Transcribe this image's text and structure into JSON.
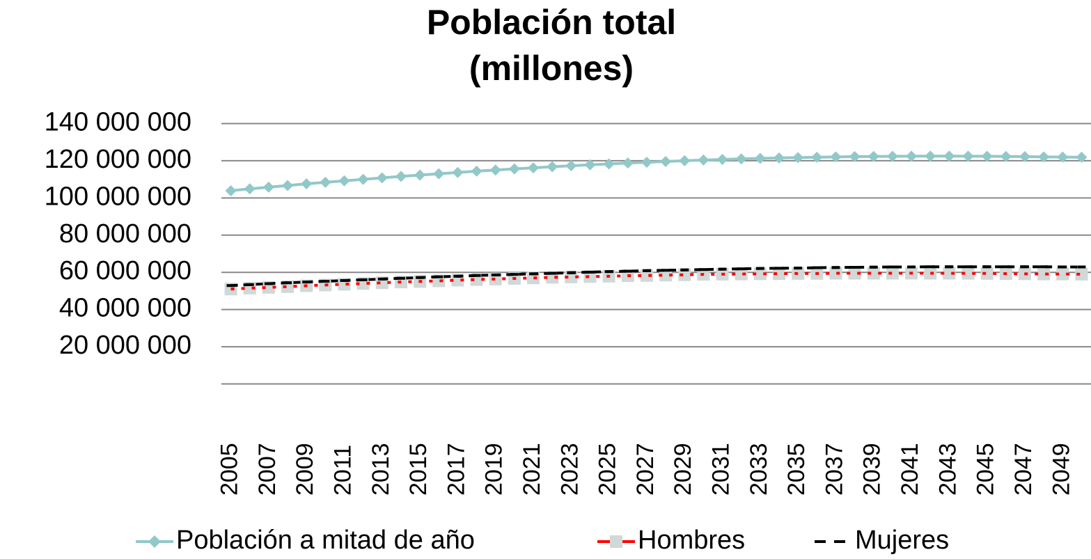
{
  "chart_data": {
    "type": "line",
    "title": [
      "Población total",
      "(millones)"
    ],
    "categories": [
      "2005",
      null,
      "2007",
      null,
      "2009",
      null,
      "2011",
      null,
      "2013",
      null,
      "2015",
      null,
      "2017",
      null,
      "2019",
      null,
      "2021",
      null,
      "2023",
      null,
      "2025",
      null,
      "2027",
      null,
      "2029",
      null,
      "2031",
      null,
      "2033",
      null,
      "2035",
      null,
      "2037",
      null,
      "2039",
      null,
      "2041",
      null,
      "2043",
      null,
      "2045",
      null,
      "2047",
      null,
      "2049",
      null
    ],
    "series": [
      {
        "name": "Población a mitad de año",
        "color": "#92c8c8",
        "marker": "diamond",
        "values": [
          103900000,
          104900000,
          105800000,
          106700000,
          107600000,
          108400000,
          109200000,
          110000000,
          110800000,
          111600000,
          112300000,
          113000000,
          113700000,
          114400000,
          115000000,
          115600000,
          116200000,
          116800000,
          117300000,
          117800000,
          118300000,
          118800000,
          119200000,
          119600000,
          120000000,
          120400000,
          120700000,
          121000000,
          121300000,
          121500000,
          121700000,
          121900000,
          122100000,
          122200000,
          122300000,
          122400000,
          122450000,
          122500000,
          122500000,
          122450000,
          122400000,
          122300000,
          122200000,
          122100000,
          122000000,
          121900000
        ]
      },
      {
        "name": "Hombres",
        "color": "#ff0000",
        "marker_color": "#d0d8d8",
        "marker": "square",
        "values": [
          51000000,
          51500000,
          51900000,
          52300000,
          52800000,
          53200000,
          53600000,
          54000000,
          54400000,
          54800000,
          55100000,
          55400000,
          55800000,
          56100000,
          56400000,
          56700000,
          57000000,
          57300000,
          57500000,
          57700000,
          57900000,
          58200000,
          58300000,
          58500000,
          58700000,
          58900000,
          59000000,
          59100000,
          59200000,
          59300000,
          59400000,
          59400000,
          59500000,
          59500000,
          59500000,
          59500000,
          59550000,
          59500000,
          59500000,
          59450000,
          59400000,
          59300000,
          59200000,
          59100000,
          59100000,
          59000000
        ]
      },
      {
        "name": "Mujeres",
        "color": "#000000",
        "marker": "dash",
        "values": [
          52900000,
          53400000,
          53900000,
          54400000,
          54800000,
          55200000,
          55600000,
          56000000,
          56400000,
          56800000,
          57200000,
          57600000,
          57900000,
          58300000,
          58600000,
          58900000,
          59200000,
          59500000,
          59800000,
          60100000,
          60400000,
          60600000,
          60900000,
          61100000,
          61300000,
          61500000,
          61700000,
          61900000,
          62100000,
          62200000,
          62300000,
          62500000,
          62600000,
          62700000,
          62800000,
          62900000,
          62900000,
          63000000,
          63000000,
          63000000,
          63000000,
          63000000,
          63000000,
          63000000,
          62900000,
          62900000
        ]
      }
    ],
    "ylim": [
      0,
      140000000
    ],
    "yticks": [
      {
        "value": 20000000,
        "label": "20 000 000"
      },
      {
        "value": 40000000,
        "label": "40 000 000"
      },
      {
        "value": 60000000,
        "label": "60 000 000"
      },
      {
        "value": 80000000,
        "label": "80 000 000"
      },
      {
        "value": 100000000,
        "label": "100 000 000"
      },
      {
        "value": 120000000,
        "label": "120 000 000"
      },
      {
        "value": 140000000,
        "label": "140 000 000"
      }
    ],
    "grid": true,
    "legend": "bottom"
  }
}
